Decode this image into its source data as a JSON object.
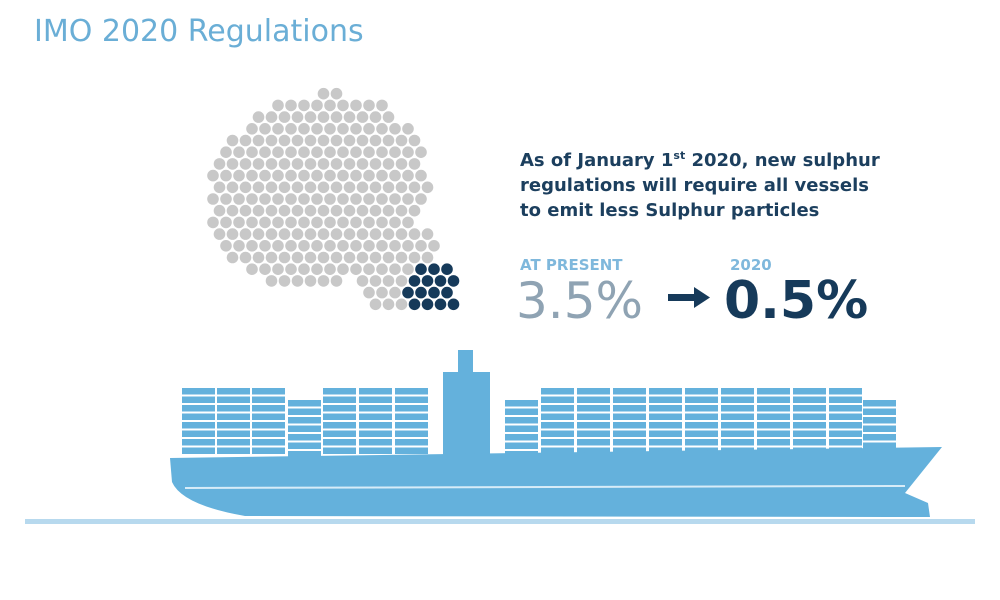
{
  "title": "IMO 2020 Regulations",
  "statement": {
    "lead": "As of January 1",
    "superscript": "st",
    "line1_rest": " 2020, new sulphur",
    "line2": "regulations will require all vessels",
    "line3": "to emit less Sulphur particles"
  },
  "comparison": {
    "present": {
      "label": "AT PRESENT",
      "value": "3.5%"
    },
    "future": {
      "label": "2020",
      "value": "0.5%"
    }
  }
}
